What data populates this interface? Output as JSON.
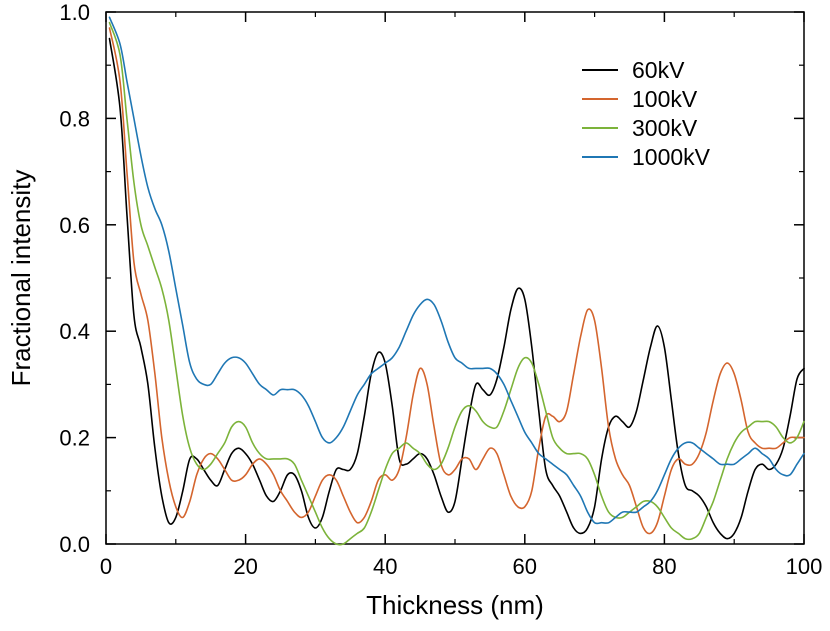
{
  "chart_data": {
    "type": "line",
    "title": "",
    "xlabel": "Thickness (nm)",
    "ylabel": "Fractional intensity",
    "xlim": [
      0,
      100
    ],
    "ylim": [
      0,
      1.0
    ],
    "xticks": [
      0,
      20,
      40,
      60,
      80,
      100
    ],
    "xtick_labels": [
      "0",
      "20",
      "40",
      "60",
      "80",
      "100"
    ],
    "yticks": [
      0,
      0.2,
      0.4,
      0.6,
      0.8,
      1.0
    ],
    "ytick_labels": [
      "0.0",
      "0.2",
      "0.4",
      "0.6",
      "0.8",
      "1.0"
    ],
    "grid": false,
    "legend_position": "top-right",
    "series": [
      {
        "name": "60kV",
        "color": "#000000",
        "x": [
          0.5,
          2,
          3,
          4,
          5,
          6,
          7,
          8,
          9,
          10,
          11,
          12,
          13,
          14,
          15,
          16,
          17,
          18,
          19,
          20,
          21,
          22,
          23,
          24,
          25,
          26,
          27,
          28,
          29,
          30,
          31,
          32,
          33,
          34,
          35,
          36,
          37,
          38,
          39,
          40,
          41,
          42,
          43,
          44,
          45,
          46,
          47,
          48,
          49,
          50,
          51,
          52,
          53,
          54,
          55,
          56,
          57,
          58,
          59,
          60,
          61,
          62,
          63,
          64,
          65,
          66,
          67,
          68,
          69,
          70,
          71,
          72,
          73,
          74,
          75,
          76,
          77,
          78,
          79,
          80,
          81,
          82,
          83,
          84,
          85,
          86,
          87,
          88,
          89,
          90,
          91,
          92,
          93,
          94,
          95,
          96,
          97,
          98,
          99,
          100
        ],
        "y": [
          0.95,
          0.82,
          0.62,
          0.43,
          0.37,
          0.3,
          0.18,
          0.09,
          0.04,
          0.05,
          0.1,
          0.16,
          0.16,
          0.14,
          0.12,
          0.11,
          0.14,
          0.17,
          0.18,
          0.17,
          0.15,
          0.12,
          0.09,
          0.08,
          0.1,
          0.13,
          0.13,
          0.1,
          0.05,
          0.03,
          0.05,
          0.1,
          0.14,
          0.14,
          0.14,
          0.17,
          0.24,
          0.32,
          0.36,
          0.34,
          0.26,
          0.16,
          0.15,
          0.16,
          0.17,
          0.16,
          0.13,
          0.09,
          0.06,
          0.08,
          0.16,
          0.24,
          0.3,
          0.29,
          0.28,
          0.31,
          0.37,
          0.44,
          0.48,
          0.46,
          0.37,
          0.25,
          0.14,
          0.11,
          0.09,
          0.06,
          0.03,
          0.02,
          0.03,
          0.07,
          0.16,
          0.22,
          0.24,
          0.23,
          0.22,
          0.25,
          0.31,
          0.37,
          0.41,
          0.37,
          0.27,
          0.17,
          0.11,
          0.1,
          0.09,
          0.07,
          0.04,
          0.02,
          0.01,
          0.02,
          0.05,
          0.1,
          0.14,
          0.15,
          0.14,
          0.15,
          0.18,
          0.24,
          0.31,
          0.33
        ]
      },
      {
        "name": "100kV",
        "color": "#d4652e",
        "x": [
          0.5,
          2,
          3,
          4,
          5,
          6,
          7,
          8,
          9,
          10,
          11,
          12,
          13,
          14,
          15,
          16,
          17,
          18,
          19,
          20,
          21,
          22,
          23,
          24,
          25,
          26,
          27,
          28,
          29,
          30,
          31,
          32,
          33,
          34,
          35,
          36,
          37,
          38,
          39,
          40,
          41,
          42,
          43,
          44,
          45,
          46,
          47,
          48,
          49,
          50,
          51,
          52,
          53,
          54,
          55,
          56,
          57,
          58,
          59,
          60,
          61,
          62,
          63,
          64,
          65,
          66,
          67,
          68,
          69,
          70,
          71,
          72,
          73,
          74,
          75,
          76,
          77,
          78,
          79,
          80,
          81,
          82,
          83,
          84,
          85,
          86,
          87,
          88,
          89,
          90,
          91,
          92,
          93,
          94,
          95,
          96,
          97,
          98,
          99,
          100
        ],
        "y": [
          0.97,
          0.87,
          0.7,
          0.53,
          0.47,
          0.42,
          0.32,
          0.2,
          0.12,
          0.07,
          0.05,
          0.08,
          0.13,
          0.16,
          0.17,
          0.16,
          0.14,
          0.12,
          0.12,
          0.13,
          0.15,
          0.16,
          0.15,
          0.13,
          0.1,
          0.08,
          0.06,
          0.05,
          0.06,
          0.09,
          0.12,
          0.13,
          0.12,
          0.09,
          0.06,
          0.04,
          0.05,
          0.08,
          0.12,
          0.13,
          0.12,
          0.14,
          0.2,
          0.28,
          0.33,
          0.3,
          0.22,
          0.15,
          0.13,
          0.14,
          0.16,
          0.16,
          0.14,
          0.16,
          0.18,
          0.17,
          0.13,
          0.09,
          0.07,
          0.07,
          0.1,
          0.18,
          0.24,
          0.24,
          0.23,
          0.25,
          0.32,
          0.39,
          0.44,
          0.42,
          0.33,
          0.22,
          0.16,
          0.13,
          0.11,
          0.07,
          0.03,
          0.02,
          0.04,
          0.09,
          0.14,
          0.16,
          0.15,
          0.15,
          0.17,
          0.21,
          0.27,
          0.32,
          0.34,
          0.32,
          0.27,
          0.21,
          0.19,
          0.18,
          0.18,
          0.18,
          0.19,
          0.2,
          0.2,
          0.2
        ]
      },
      {
        "name": "300kV",
        "color": "#7cb33a",
        "x": [
          0.5,
          2,
          3,
          4,
          5,
          6,
          7,
          8,
          9,
          10,
          11,
          12,
          13,
          14,
          15,
          16,
          17,
          18,
          19,
          20,
          21,
          22,
          23,
          24,
          25,
          26,
          27,
          28,
          29,
          30,
          31,
          32,
          33,
          34,
          35,
          36,
          37,
          38,
          39,
          40,
          41,
          42,
          43,
          44,
          45,
          46,
          47,
          48,
          49,
          50,
          51,
          52,
          53,
          54,
          55,
          56,
          57,
          58,
          59,
          60,
          61,
          62,
          63,
          64,
          65,
          66,
          67,
          68,
          69,
          70,
          71,
          72,
          73,
          74,
          75,
          76,
          77,
          78,
          79,
          80,
          81,
          82,
          83,
          84,
          85,
          86,
          87,
          88,
          89,
          90,
          91,
          92,
          93,
          94,
          95,
          96,
          97,
          98,
          99,
          100
        ],
        "y": [
          0.98,
          0.92,
          0.8,
          0.68,
          0.6,
          0.56,
          0.52,
          0.48,
          0.42,
          0.33,
          0.24,
          0.18,
          0.15,
          0.14,
          0.15,
          0.17,
          0.19,
          0.22,
          0.23,
          0.22,
          0.19,
          0.17,
          0.16,
          0.16,
          0.16,
          0.16,
          0.15,
          0.12,
          0.09,
          0.06,
          0.03,
          0.01,
          0.0,
          0.0,
          0.01,
          0.02,
          0.03,
          0.06,
          0.1,
          0.14,
          0.17,
          0.18,
          0.19,
          0.18,
          0.17,
          0.15,
          0.14,
          0.15,
          0.18,
          0.22,
          0.25,
          0.26,
          0.25,
          0.23,
          0.22,
          0.22,
          0.25,
          0.29,
          0.33,
          0.35,
          0.34,
          0.3,
          0.25,
          0.2,
          0.18,
          0.17,
          0.17,
          0.17,
          0.16,
          0.13,
          0.09,
          0.06,
          0.05,
          0.05,
          0.06,
          0.07,
          0.08,
          0.08,
          0.07,
          0.05,
          0.03,
          0.02,
          0.01,
          0.01,
          0.02,
          0.05,
          0.08,
          0.12,
          0.16,
          0.19,
          0.21,
          0.22,
          0.23,
          0.23,
          0.23,
          0.22,
          0.2,
          0.19,
          0.2,
          0.23
        ]
      },
      {
        "name": "1000kV",
        "color": "#1f77b4",
        "x": [
          0.5,
          2,
          3,
          4,
          5,
          6,
          7,
          8,
          9,
          10,
          11,
          12,
          13,
          14,
          15,
          16,
          17,
          18,
          19,
          20,
          21,
          22,
          23,
          24,
          25,
          26,
          27,
          28,
          29,
          30,
          31,
          32,
          33,
          34,
          35,
          36,
          37,
          38,
          39,
          40,
          41,
          42,
          43,
          44,
          45,
          46,
          47,
          48,
          49,
          50,
          51,
          52,
          53,
          54,
          55,
          56,
          57,
          58,
          59,
          60,
          61,
          62,
          63,
          64,
          65,
          66,
          67,
          68,
          69,
          70,
          71,
          72,
          73,
          74,
          75,
          76,
          77,
          78,
          79,
          80,
          81,
          82,
          83,
          84,
          85,
          86,
          87,
          88,
          89,
          90,
          91,
          92,
          93,
          94,
          95,
          96,
          97,
          98,
          99,
          100
        ],
        "y": [
          0.99,
          0.94,
          0.87,
          0.8,
          0.73,
          0.67,
          0.63,
          0.6,
          0.55,
          0.48,
          0.41,
          0.34,
          0.31,
          0.3,
          0.3,
          0.32,
          0.34,
          0.35,
          0.35,
          0.34,
          0.32,
          0.3,
          0.29,
          0.28,
          0.29,
          0.29,
          0.29,
          0.28,
          0.26,
          0.23,
          0.2,
          0.19,
          0.2,
          0.22,
          0.25,
          0.28,
          0.3,
          0.32,
          0.33,
          0.34,
          0.35,
          0.37,
          0.4,
          0.43,
          0.45,
          0.46,
          0.45,
          0.42,
          0.38,
          0.35,
          0.34,
          0.33,
          0.33,
          0.33,
          0.33,
          0.32,
          0.3,
          0.27,
          0.24,
          0.21,
          0.19,
          0.17,
          0.16,
          0.15,
          0.14,
          0.13,
          0.11,
          0.09,
          0.06,
          0.04,
          0.04,
          0.04,
          0.05,
          0.06,
          0.06,
          0.06,
          0.07,
          0.08,
          0.1,
          0.13,
          0.16,
          0.18,
          0.19,
          0.19,
          0.18,
          0.17,
          0.16,
          0.15,
          0.15,
          0.15,
          0.16,
          0.17,
          0.18,
          0.17,
          0.16,
          0.14,
          0.13,
          0.13,
          0.15,
          0.17
        ]
      }
    ]
  }
}
